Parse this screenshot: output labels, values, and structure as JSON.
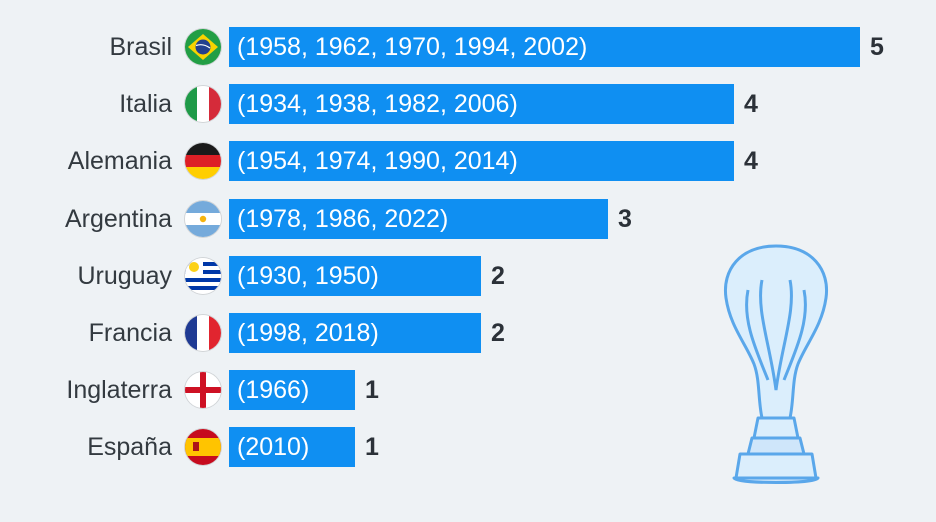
{
  "chart_data": {
    "type": "bar",
    "orientation": "horizontal",
    "categories": [
      "Brasil",
      "Italia",
      "Alemania",
      "Argentina",
      "Uruguay",
      "Francia",
      "Inglaterra",
      "España"
    ],
    "values": [
      5,
      4,
      4,
      3,
      2,
      2,
      1,
      1
    ],
    "bar_labels": [
      "(1958, 1962, 1970, 1994, 2002)",
      "(1934, 1938, 1982, 2006)",
      "(1954, 1974, 1990, 2014)",
      "(1978, 1986, 2022)",
      "(1930, 1950)",
      "(1998, 2018)",
      "(1966)",
      "(2010)"
    ],
    "flag_icons": [
      "brazil-flag-icon",
      "italy-flag-icon",
      "germany-flag-icon",
      "argentina-flag-icon",
      "uruguay-flag-icon",
      "france-flag-icon",
      "england-flag-icon",
      "spain-flag-icon"
    ],
    "xlim": [
      0,
      5
    ],
    "grid": false,
    "legend": "none",
    "colors": {
      "bar": "#0f8ff2",
      "background": "#eef2f5",
      "trophy": "#5aa7ea"
    }
  }
}
